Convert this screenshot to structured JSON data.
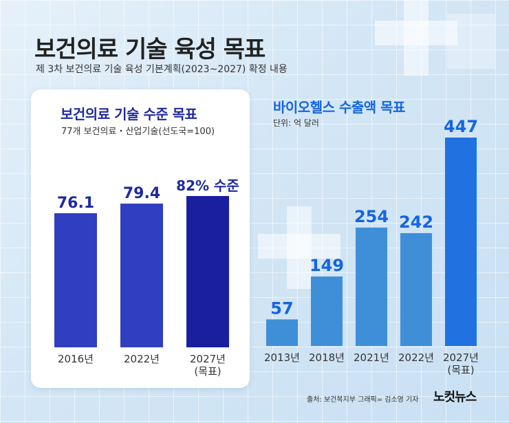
{
  "header": {
    "title": "보건의료 기술 육성 목표",
    "subtitle": "제 3차 보건의료 기술 육성 기본계획(2023~2027) 확정 내용"
  },
  "colors": {
    "left_bar": "#2f3fbf",
    "left_bar_target": "#1a1fa0",
    "left_label": "#1f2aa0",
    "right_bar": "#3f8fd8",
    "right_bar_target": "#1f72e0",
    "right_label": "#1565e0"
  },
  "chart_data": [
    {
      "type": "bar",
      "title": "보건의료 기술 수준 목표",
      "subtitle": "77개 보건의료・산업기술(선도국=100)",
      "categories": [
        "2016년",
        "2022년",
        "2027년\n(목표)"
      ],
      "values": [
        76.1,
        79.4,
        82
      ],
      "data_labels": [
        "76.1",
        "79.4",
        "82% 수준"
      ],
      "ylim": [
        30,
        82
      ]
    },
    {
      "type": "bar",
      "title": "바이오헬스 수출액 목표",
      "unit": "단위: 억 달러",
      "categories": [
        "2013년",
        "2018년",
        "2021년",
        "2022년",
        "2027년\n(목표)"
      ],
      "values": [
        57,
        149,
        254,
        242,
        447
      ],
      "data_labels": [
        "57",
        "149",
        "254",
        "242",
        "447"
      ],
      "ylim": [
        0,
        447
      ]
    }
  ],
  "footer": {
    "source": "출처: 보건복지부   그래픽= 김소영 기자",
    "logo": "노컷뉴스"
  }
}
